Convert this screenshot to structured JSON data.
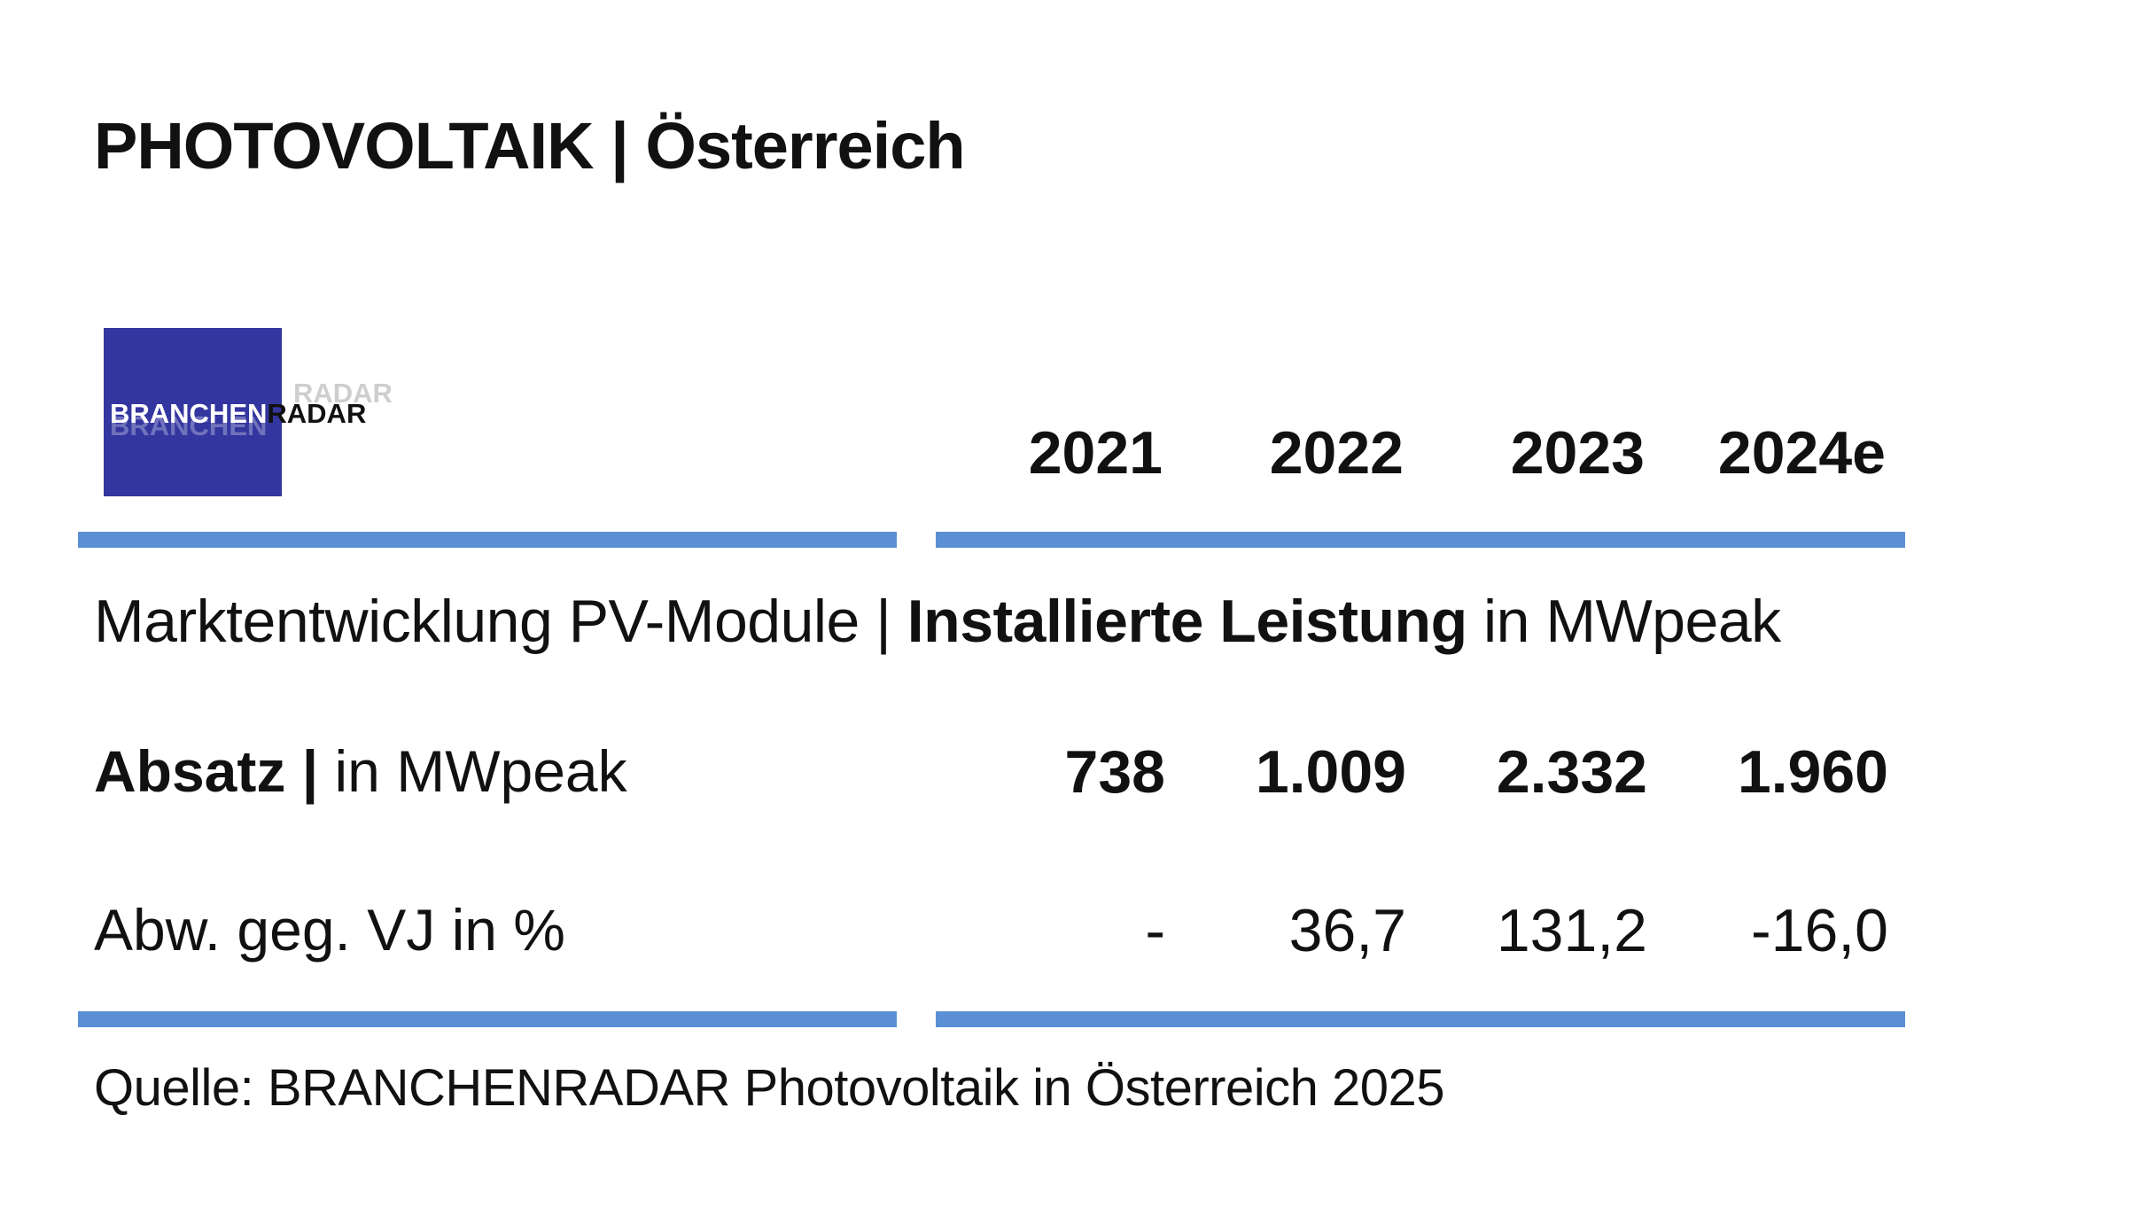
{
  "chart_data": {
    "type": "table",
    "title": "PHOTOVOLTAIK | Österreich",
    "subtitle_regular": "Marktentwicklung PV-Module | ",
    "subtitle_bold": "Installierte Leistung",
    "subtitle_suffix": " in MWpeak",
    "columns": [
      "2021",
      "2022",
      "2023",
      "2024e"
    ],
    "rows": [
      {
        "label_bold": "Absatz |",
        "label_regular": " in MWpeak",
        "values": [
          "738",
          "1.009",
          "2.332",
          "1.960"
        ]
      },
      {
        "label_bold": "",
        "label_regular": "Abw. geg. VJ in %",
        "values": [
          "-",
          "36,7",
          "131,2",
          "-16,0"
        ]
      }
    ],
    "source": "Quelle: BRANCHENRADAR Photovoltaik in Österreich 2025"
  },
  "logo": {
    "text_white": "BRANCHEN",
    "text_dark": "RADAR"
  },
  "colors": {
    "rule": "#5a8fd4",
    "logo_background": "#3436a0",
    "text": "#111111"
  }
}
